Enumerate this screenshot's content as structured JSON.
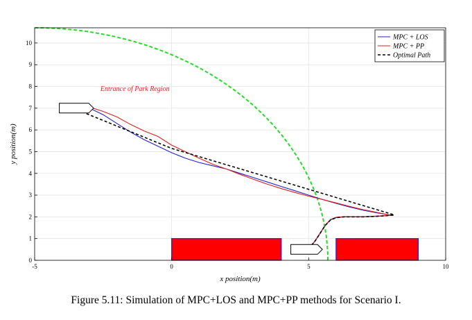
{
  "chart_data": {
    "type": "line",
    "xlabel": "x position(m)",
    "ylabel": "y position(m)",
    "xlim": [
      -5,
      10
    ],
    "ylim": [
      0,
      10.7
    ],
    "xticks": [
      -5,
      0,
      5,
      10
    ],
    "yticks": [
      0,
      1,
      2,
      3,
      4,
      5,
      6,
      7,
      8,
      9,
      10
    ],
    "grid": true,
    "legend_position": "top-right",
    "annotation": {
      "text": "Entrance of Park Region",
      "x": -2.6,
      "y": 7.8,
      "color": "#e0201b"
    },
    "series": [
      {
        "name": "MPC + LOS",
        "color": "#1f1fd6",
        "style": "solid",
        "x": [
          -3.6,
          -3.3,
          -3.0,
          -2.5,
          -2.0,
          -1.5,
          -1.0,
          -0.5,
          0.0,
          0.5,
          1.0,
          1.5,
          2.0,
          2.5,
          3.0,
          3.5,
          4.0,
          4.5,
          5.0,
          5.5,
          6.0,
          6.5,
          7.0,
          7.5,
          7.9,
          8.1
        ],
        "y": [
          7.0,
          7.08,
          7.0,
          6.7,
          6.3,
          5.9,
          5.55,
          5.25,
          4.95,
          4.7,
          4.5,
          4.35,
          4.2,
          4.0,
          3.8,
          3.6,
          3.4,
          3.2,
          3.0,
          2.8,
          2.62,
          2.45,
          2.3,
          2.18,
          2.1,
          2.08
        ]
      },
      {
        "name": "MPC + PP",
        "color": "#e0201b",
        "style": "solid",
        "x": [
          -3.6,
          -3.3,
          -3.0,
          -2.5,
          -2.0,
          -1.5,
          -1.0,
          -0.5,
          0.0,
          0.5,
          1.0,
          1.5,
          2.0,
          2.5,
          3.0,
          3.5,
          4.0,
          4.5,
          5.0,
          5.5,
          6.0,
          6.5,
          7.0,
          7.5,
          7.9,
          8.1
        ],
        "y": [
          7.0,
          7.12,
          7.05,
          6.85,
          6.6,
          6.25,
          5.95,
          5.7,
          5.3,
          5.0,
          4.7,
          4.42,
          4.2,
          3.95,
          3.72,
          3.5,
          3.3,
          3.12,
          2.95,
          2.8,
          2.64,
          2.48,
          2.33,
          2.2,
          2.1,
          2.08
        ]
      },
      {
        "name": "Optimal Path",
        "color": "#000000",
        "style": "dashed",
        "x": [
          -3.6,
          0.0,
          8.1
        ],
        "y": [
          7.0,
          5.15,
          2.1
        ]
      },
      {
        "name": "",
        "color": "#1f1fd6",
        "style": "solid",
        "x": [
          4.8,
          5.0,
          5.2,
          5.4,
          5.6,
          5.8,
          6.0,
          6.3,
          6.6,
          7.0,
          7.4,
          7.7,
          7.9,
          8.1
        ],
        "y": [
          0.48,
          0.58,
          0.82,
          1.2,
          1.6,
          1.86,
          1.96,
          2.0,
          2.0,
          2.0,
          2.02,
          2.04,
          2.06,
          2.08
        ]
      },
      {
        "name": "",
        "color": "#e0201b",
        "style": "solid",
        "x": [
          4.8,
          5.0,
          5.2,
          5.4,
          5.6,
          5.8,
          6.0,
          6.3,
          6.6,
          7.0,
          7.4,
          7.7,
          7.9,
          8.1
        ],
        "y": [
          0.48,
          0.58,
          0.84,
          1.22,
          1.62,
          1.88,
          1.98,
          2.01,
          2.01,
          2.01,
          2.03,
          2.05,
          2.07,
          2.08
        ]
      },
      {
        "name": "",
        "color": "#000000",
        "style": "dashed",
        "x": [
          4.8,
          5.0,
          5.2,
          5.4,
          5.6,
          5.8,
          6.0,
          6.3,
          6.6,
          7.0,
          7.4,
          7.7,
          7.9,
          8.1
        ],
        "y": [
          0.48,
          0.58,
          0.82,
          1.2,
          1.6,
          1.86,
          1.96,
          2.0,
          2.0,
          2.0,
          2.02,
          2.04,
          2.06,
          2.08
        ]
      }
    ],
    "entrance_arc": {
      "color": "#22dd22",
      "style": "dashed",
      "center": [
        -5,
        0
      ],
      "radius": 10.7
    },
    "obstacles": [
      {
        "x": [
          0,
          4
        ],
        "y": [
          0,
          1
        ],
        "fill": "#ff0000",
        "edge": "#1f1fd6"
      },
      {
        "x": [
          6,
          9
        ],
        "y": [
          0,
          1
        ],
        "fill": "#ff0000",
        "edge": "#1f1fd6"
      }
    ],
    "vehicles": [
      {
        "rear_x": -4.1,
        "front_x": -2.85,
        "y": 7.0
      },
      {
        "rear_x": 4.35,
        "front_x": 5.5,
        "y": 0.5
      }
    ]
  },
  "caption": "Figure 5.11: Simulation of MPC+LOS and MPC+PP methods for Scenario I."
}
